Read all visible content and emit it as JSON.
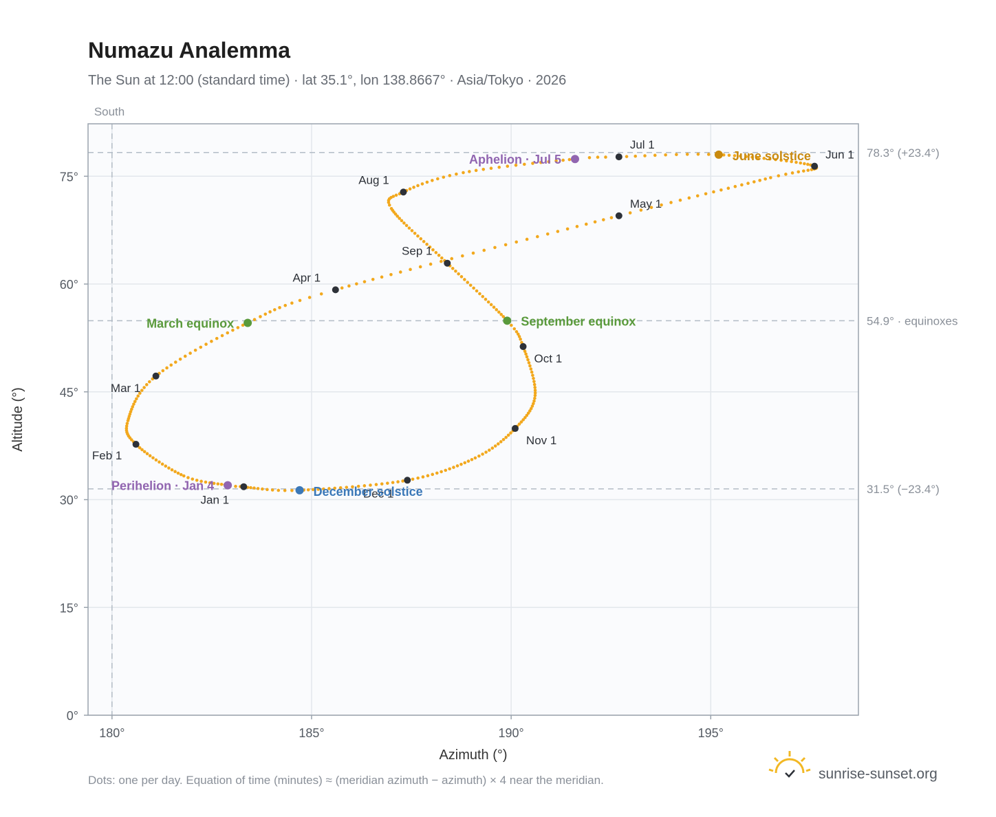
{
  "chart_data": {
    "type": "scatter",
    "title": "Numazu Analemma",
    "subtitle": "The Sun at 12:00 (standard time) · lat 35.1°, lon 138.8667° · Asia/Tokyo · 2026",
    "xlabel": "Azimuth (°)",
    "ylabel": "Altitude (°)",
    "xlim": [
      179.4,
      198.7
    ],
    "ylim": [
      0,
      82.3
    ],
    "xticks": [
      180,
      185,
      190,
      195
    ],
    "xtick_labels": [
      "180°",
      "185°",
      "190°",
      "195°"
    ],
    "yticks": [
      0,
      15,
      30,
      45,
      60,
      75
    ],
    "ytick_labels": [
      "0°",
      "15°",
      "30°",
      "45°",
      "60°",
      "75°"
    ],
    "grid": true,
    "meridian": {
      "x": 180,
      "label": "South"
    },
    "reference_lines": [
      {
        "y": 78.3,
        "label": "78.3° (+23.4°)"
      },
      {
        "y": 54.9,
        "label": "54.9° · equinoxes"
      },
      {
        "y": 31.5,
        "label": "31.5° (−23.4°)"
      }
    ],
    "path_color": "#f2a81d",
    "anchors": [
      {
        "date": "Jan 1",
        "day": 0,
        "x": 183.3,
        "y": 31.8
      },
      {
        "date": "Jan 4",
        "day": 3,
        "x": 182.9,
        "y": 32.0
      },
      {
        "date": "Jan 15",
        "day": 14,
        "x": 181.8,
        "y": 33.3
      },
      {
        "date": "Feb 1",
        "day": 31,
        "x": 180.6,
        "y": 37.7
      },
      {
        "date": "Feb 12",
        "day": 42,
        "x": 180.4,
        "y": 41.0
      },
      {
        "date": "Mar 1",
        "day": 59,
        "x": 181.1,
        "y": 47.2
      },
      {
        "date": "Mar 20",
        "day": 78,
        "x": 183.4,
        "y": 54.6
      },
      {
        "date": "Apr 1",
        "day": 90,
        "x": 185.6,
        "y": 59.2
      },
      {
        "date": "May 1",
        "day": 120,
        "x": 192.7,
        "y": 69.5
      },
      {
        "date": "May 20",
        "day": 139,
        "x": 196.5,
        "y": 74.8
      },
      {
        "date": "Jun 1",
        "day": 151,
        "x": 197.6,
        "y": 76.4
      },
      {
        "date": "Jun 21",
        "day": 171,
        "x": 195.2,
        "y": 78.0
      },
      {
        "date": "Jul 1",
        "day": 181,
        "x": 192.7,
        "y": 77.7
      },
      {
        "date": "Jul 5",
        "day": 185,
        "x": 191.6,
        "y": 77.4
      },
      {
        "date": "Jul 20",
        "day": 200,
        "x": 188.8,
        "y": 75.5
      },
      {
        "date": "Aug 1",
        "day": 212,
        "x": 187.3,
        "y": 72.8
      },
      {
        "date": "Aug 10",
        "day": 221,
        "x": 187.0,
        "y": 70.5
      },
      {
        "date": "Sep 1",
        "day": 243,
        "x": 188.4,
        "y": 62.9
      },
      {
        "date": "Sep 23",
        "day": 265,
        "x": 189.9,
        "y": 54.9
      },
      {
        "date": "Oct 1",
        "day": 273,
        "x": 190.3,
        "y": 51.3
      },
      {
        "date": "Oct 18",
        "day": 290,
        "x": 190.6,
        "y": 44.5
      },
      {
        "date": "Nov 1",
        "day": 304,
        "x": 190.1,
        "y": 39.9
      },
      {
        "date": "Nov 15",
        "day": 318,
        "x": 189.1,
        "y": 35.8
      },
      {
        "date": "Dec 1",
        "day": 334,
        "x": 187.4,
        "y": 32.7
      },
      {
        "date": "Dec 21",
        "day": 354,
        "x": 184.7,
        "y": 31.3
      },
      {
        "date": "Dec 31",
        "day": 364,
        "x": 183.4,
        "y": 31.7
      }
    ],
    "month_markers": [
      {
        "label": "Jan 1",
        "x": 183.3,
        "y": 31.8,
        "anchor": "middle",
        "dx": -42,
        "dy": 25
      },
      {
        "label": "Feb 1",
        "x": 180.6,
        "y": 37.7,
        "anchor": "middle",
        "dx": -42,
        "dy": 22
      },
      {
        "label": "Mar 1",
        "x": 181.1,
        "y": 47.2,
        "anchor": "middle",
        "dx": -44,
        "dy": 23
      },
      {
        "label": "Apr 1",
        "x": 185.6,
        "y": 59.2,
        "anchor": "middle",
        "dx": -42,
        "dy": -12
      },
      {
        "label": "May 1",
        "x": 192.7,
        "y": 69.5,
        "anchor": "start",
        "dx": 16,
        "dy": -12
      },
      {
        "label": "Jun 1",
        "x": 197.6,
        "y": 76.4,
        "anchor": "start",
        "dx": 16,
        "dy": -11
      },
      {
        "label": "Jul 1",
        "x": 192.7,
        "y": 77.7,
        "anchor": "start",
        "dx": 16,
        "dy": -12
      },
      {
        "label": "Aug 1",
        "x": 187.3,
        "y": 72.8,
        "anchor": "middle",
        "dx": -43,
        "dy": -12
      },
      {
        "label": "Sep 1",
        "x": 188.4,
        "y": 62.9,
        "anchor": "middle",
        "dx": -44,
        "dy": -12
      },
      {
        "label": "Oct 1",
        "x": 190.3,
        "y": 51.3,
        "anchor": "start",
        "dx": 16,
        "dy": 23
      },
      {
        "label": "Nov 1",
        "x": 190.1,
        "y": 39.9,
        "anchor": "start",
        "dx": 16,
        "dy": 23
      },
      {
        "label": "Dec 1",
        "x": 187.4,
        "y": 32.7,
        "anchor": "middle",
        "dx": -42,
        "dy": 25
      }
    ],
    "events": [
      {
        "label": "March equinox",
        "x": 183.4,
        "y": 54.6,
        "color": "#5a9a3c",
        "anchor": "end",
        "dx": -20,
        "dy": 7
      },
      {
        "label": "September equinox",
        "x": 189.9,
        "y": 54.9,
        "color": "#5a9a3c",
        "anchor": "start",
        "dx": 20,
        "dy": 7
      },
      {
        "label": "June solstice",
        "x": 195.2,
        "y": 78.0,
        "color": "#c98a0f",
        "anchor": "start",
        "dx": 20,
        "dy": 8
      },
      {
        "label": "December solstice",
        "x": 184.7,
        "y": 31.3,
        "color": "#3b78b8",
        "anchor": "start",
        "dx": 20,
        "dy": 8
      },
      {
        "label": "Aphelion · Jul 5",
        "x": 191.6,
        "y": 77.4,
        "color": "#9165b0",
        "anchor": "end",
        "dx": -20,
        "dy": 7
      },
      {
        "label": "Perihelion · Jan 4",
        "x": 182.9,
        "y": 32.0,
        "color": "#9165b0",
        "anchor": "end",
        "dx": -20,
        "dy": 7
      }
    ]
  },
  "footer": {
    "note": "Dots: one per day. Equation of time (minutes) ≈ (meridian azimuth − azimuth) × 4 near the meridian.",
    "brand": "sunrise-sunset.org",
    "brand_icon": "sun-rise-logo-icon"
  }
}
